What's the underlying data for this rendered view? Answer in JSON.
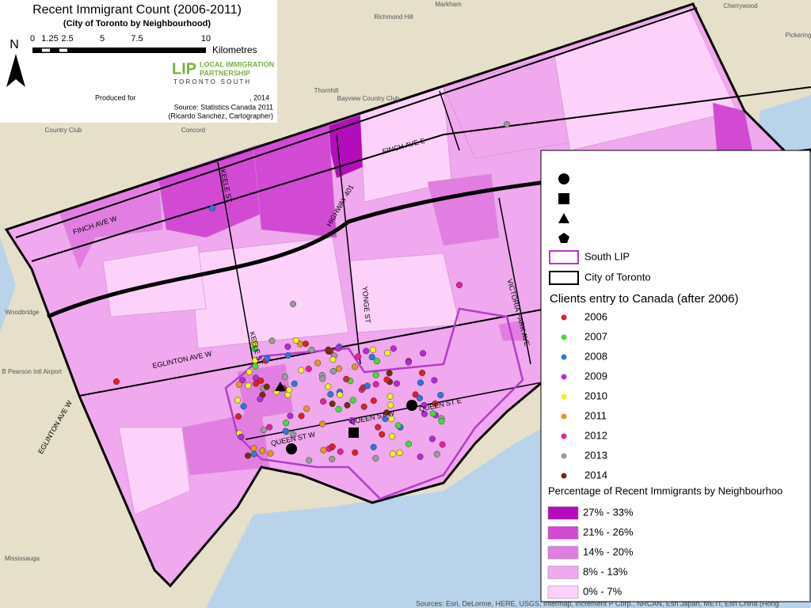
{
  "header": {
    "title": "Recent Immigrant Count (2006-2011)",
    "subtitle": "(City of Toronto by Neighbourhood)",
    "north": "N",
    "scale_ticks": [
      "0",
      "1.25",
      "2.5",
      "5",
      "7.5",
      "10"
    ],
    "scale_unit": "Kilometres",
    "logo_mark": "LIP",
    "logo_line1": "LOCAL IMMIGRATION",
    "logo_line2": "PARTNERSHIP",
    "logo_line3": "T O R O N T O   S O U T H",
    "produced_for": "Produced for",
    "year": ", 2014",
    "source": "Source: Statistics Canada 2011",
    "cartographer": "(Ricardo Sanchez, Cartographer)"
  },
  "legend": {
    "boundaries": [
      {
        "label": "South LIP",
        "color": "#b43cc8"
      },
      {
        "label": "City of Toronto",
        "color": "#000000"
      }
    ],
    "clients_title": "Clients entry to Canada (after 2006)",
    "years": [
      {
        "label": "2006",
        "color": "#e01e24"
      },
      {
        "label": "2007",
        "color": "#3ee03a"
      },
      {
        "label": "2008",
        "color": "#2a78e0"
      },
      {
        "label": "2009",
        "color": "#b62ad8"
      },
      {
        "label": "2010",
        "color": "#f4f020"
      },
      {
        "label": "2011",
        "color": "#e8961e"
      },
      {
        "label": "2012",
        "color": "#e81ea0"
      },
      {
        "label": "2013",
        "color": "#9a9a9a"
      },
      {
        "label": "2014",
        "color": "#7a2a10"
      }
    ],
    "percentage_title": "Percentage of Recent Immigrants by Neighbourhoo",
    "classes": [
      {
        "label": "27% - 33%",
        "color": "#b40cbc"
      },
      {
        "label": "21% - 26%",
        "color": "#d24ad4"
      },
      {
        "label": "14% - 20%",
        "color": "#e27ee2"
      },
      {
        "label": "8% - 13%",
        "color": "#f0a8ee"
      },
      {
        "label": "0% - 7%",
        "color": "#fcd2fa"
      }
    ]
  },
  "map": {
    "streets": [
      "FINCH AVE W",
      "FINCH AVE E",
      "KEELE ST",
      "HIGHWAY 401",
      "EGLINTON AVE W",
      "KEELE ST",
      "YONGE ST",
      "VICTORIA PARK AVE",
      "EGLINTON AVE W",
      "QUEEN ST W",
      "QUEEN ST W",
      "QUEEN ST E"
    ],
    "places": [
      "Richmond Hill",
      "Markham",
      "Thornhill",
      "Concord",
      "Mississauga",
      "Cherrywood",
      "Pickering",
      "Lester B Pearson Intl Airport",
      "Woodbridge",
      "Bayview Country Club",
      "Country Club"
    ],
    "attribution": "Sources: Esri, DeLorme, HERE, USGS, Intermap, increment P Corp., NRCAN, Esri Japan, METI, Esri China (Hong"
  }
}
